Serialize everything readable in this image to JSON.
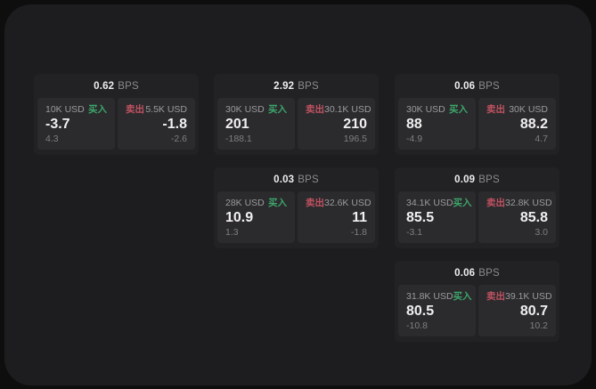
{
  "labels": {
    "bps": "BPS",
    "buy": "买入",
    "sell": "卖出"
  },
  "colors": {
    "buy_green": "#3da56a",
    "sell_red": "#c05260",
    "panel_bg": "#1d1d1f",
    "card_bg": "#222225",
    "subcard_bg": "#2b2b2e"
  },
  "cards": [
    {
      "bps": "0.62",
      "buy": {
        "amount": "10K USD",
        "value": "-3.7",
        "delta": "4.3"
      },
      "sell": {
        "amount": "5.5K USD",
        "value": "-1.8",
        "delta": "-2.6"
      }
    },
    {
      "bps": "2.92",
      "buy": {
        "amount": "30K USD",
        "value": "201",
        "delta": "-188.1"
      },
      "sell": {
        "amount": "30.1K USD",
        "value": "210",
        "delta": "196.5"
      }
    },
    {
      "bps": "0.06",
      "buy": {
        "amount": "30K USD",
        "value": "88",
        "delta": "-4.9"
      },
      "sell": {
        "amount": "30K USD",
        "value": "88.2",
        "delta": "4.7"
      }
    },
    {
      "bps": "0.03",
      "buy": {
        "amount": "28K USD",
        "value": "10.9",
        "delta": "1.3"
      },
      "sell": {
        "amount": "32.6K USD",
        "value": "11",
        "delta": "-1.8"
      }
    },
    {
      "bps": "0.09",
      "buy": {
        "amount": "34.1K USD",
        "value": "85.5",
        "delta": "-3.1"
      },
      "sell": {
        "amount": "32.8K USD",
        "value": "85.8",
        "delta": "3.0"
      }
    },
    {
      "bps": "0.06",
      "buy": {
        "amount": "31.8K USD",
        "value": "80.5",
        "delta": "-10.8"
      },
      "sell": {
        "amount": "39.1K USD",
        "value": "80.7",
        "delta": "10.2"
      }
    }
  ]
}
